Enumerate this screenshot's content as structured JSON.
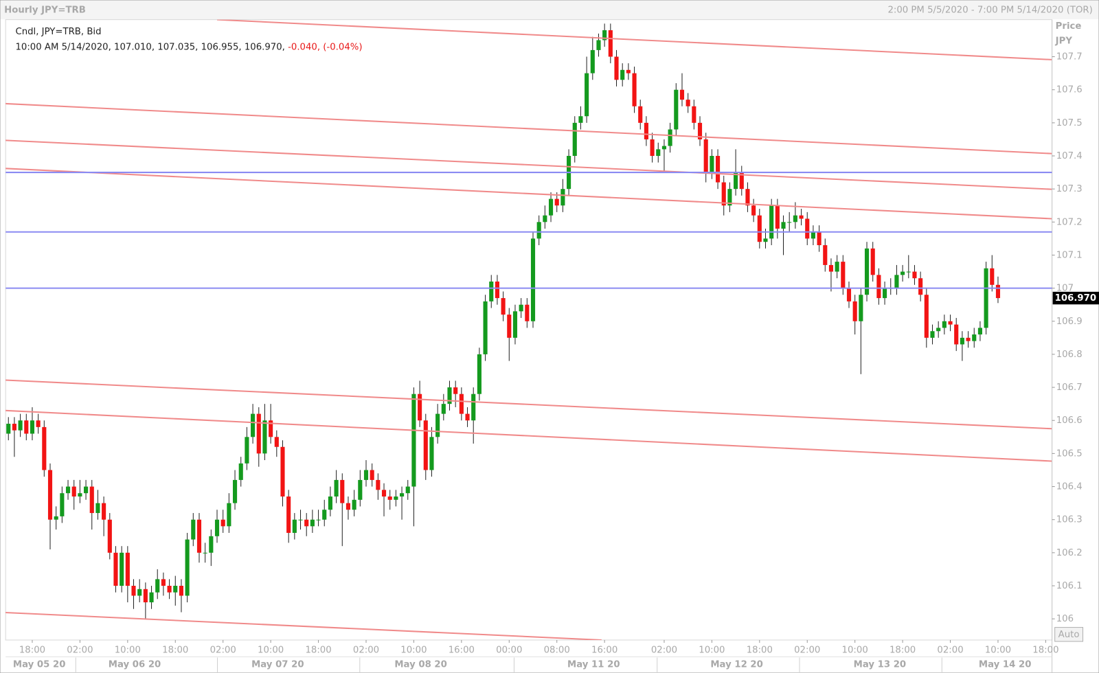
{
  "chart_data": {
    "type": "candlestick",
    "title": "Hourly JPY=TRB",
    "range_label": "2:00 PM 5/5/2020 - 7:00 PM 5/14/2020 (TOR)",
    "legend": {
      "line1": "Cndl, JPY=TRB, Bid",
      "line2": "10:00 AM 5/14/2020, 107.010, 107.035, 106.955, 106.970,",
      "change": "-0.040, (-0.04%)"
    },
    "y_axis_label": "Price",
    "y_axis_unit": "JPY",
    "auto_button": "Auto",
    "up_color": "#149a1e",
    "down_color": "#f21414",
    "trendline_color": "#f08a8a",
    "hline_color": "#8a8af2",
    "ylim": [
      105.936,
      107.812
    ],
    "yticks": [
      106,
      106.1,
      106.2,
      106.3,
      106.4,
      106.5,
      106.6,
      106.7,
      106.8,
      106.9,
      107,
      107.1,
      107.2,
      107.3,
      107.4,
      107.5,
      107.6,
      107.7
    ],
    "last_price": {
      "value": 106.97,
      "label": "106.970"
    },
    "categories": [
      null,
      null,
      null,
      null,
      "18:00",
      null,
      null,
      null,
      null,
      null,
      null,
      null,
      "02:00",
      null,
      null,
      null,
      null,
      null,
      null,
      null,
      "10:00",
      null,
      null,
      null,
      null,
      null,
      null,
      null,
      "18:00",
      null,
      null,
      null,
      null,
      null,
      null,
      null,
      "02:00",
      null,
      null,
      null,
      null,
      null,
      null,
      null,
      "10:00",
      null,
      null,
      null,
      null,
      null,
      null,
      null,
      "18:00",
      null,
      null,
      null,
      null,
      null,
      null,
      null,
      "02:00",
      null,
      null,
      null,
      null,
      null,
      null,
      null,
      "10:00",
      null,
      null,
      null,
      null,
      null,
      null,
      null,
      "16:00",
      null,
      null,
      null,
      null,
      null,
      null,
      null,
      "00:00",
      null,
      null,
      null,
      null,
      null,
      null,
      null,
      "08:00",
      null,
      null,
      null,
      null,
      null,
      null,
      null,
      "16:00",
      null,
      null,
      null,
      null,
      null,
      null,
      null,
      null,
      null,
      "02:00",
      null,
      null,
      null,
      null,
      null,
      null,
      null,
      "10:00",
      null,
      null,
      null,
      null,
      null,
      null,
      null,
      "18:00",
      null,
      null,
      null,
      null,
      null,
      null,
      null,
      "02:00",
      null,
      null,
      null,
      null,
      null,
      null,
      null,
      "10:00",
      null,
      null,
      null,
      null,
      null,
      null,
      null,
      "18:00",
      null,
      null,
      null,
      null,
      null,
      null,
      null,
      "02:00",
      null,
      null,
      null,
      null,
      null,
      null,
      null,
      "10:00",
      null,
      null,
      null,
      null,
      null,
      null,
      null,
      "18:00",
      null
    ],
    "dates": [
      null,
      null,
      null,
      null,
      "May 05 20",
      null,
      null,
      null,
      null,
      null,
      null,
      null,
      null,
      null,
      null,
      null,
      null,
      null,
      null,
      null,
      "May 06 20",
      null,
      null,
      null,
      null,
      null,
      null,
      null,
      null,
      null,
      null,
      null,
      null,
      null,
      null,
      null,
      null,
      null,
      null,
      null,
      null,
      null,
      null,
      null,
      "May 07 20",
      null,
      null,
      null,
      null,
      null,
      null,
      null,
      null,
      null,
      null,
      null,
      null,
      null,
      null,
      null,
      null,
      null,
      null,
      null,
      null,
      null,
      null,
      null,
      "May 08 20",
      null,
      null,
      null,
      null,
      null,
      null,
      null,
      null,
      null,
      null,
      null,
      null,
      null,
      null,
      null,
      null,
      null,
      null,
      null,
      null,
      null,
      null,
      null,
      null,
      null,
      null,
      null,
      null,
      "May 11 20",
      null,
      null,
      null,
      null,
      null,
      null,
      null,
      null,
      null,
      null,
      null,
      null,
      null,
      null,
      null,
      null,
      null,
      null,
      null,
      null,
      null,
      null,
      null,
      "May 12 20",
      null,
      null,
      null,
      null,
      null,
      null,
      null,
      null,
      null,
      null,
      null,
      null,
      null,
      null,
      null,
      null,
      null,
      null,
      null,
      null,
      null,
      null,
      null,
      "May 13 20",
      null,
      null,
      null,
      null,
      null,
      null,
      null,
      null,
      null,
      null,
      null,
      null,
      null,
      null,
      null,
      null,
      null,
      null,
      null,
      null,
      "May 14 20",
      null,
      null,
      null,
      null,
      null,
      null,
      null,
      null,
      null
    ],
    "ohlc": [
      [
        106.56,
        106.61,
        106.54,
        106.59
      ],
      [
        106.59,
        106.61,
        106.49,
        106.57
      ],
      [
        106.57,
        106.62,
        106.55,
        106.6
      ],
      [
        106.6,
        106.62,
        106.54,
        106.56
      ],
      [
        106.56,
        106.64,
        106.54,
        106.6
      ],
      [
        106.6,
        106.62,
        106.56,
        106.58
      ],
      [
        106.58,
        106.6,
        106.43,
        106.45
      ],
      [
        106.45,
        106.47,
        106.21,
        106.3
      ],
      [
        106.3,
        106.34,
        106.27,
        106.31
      ],
      [
        106.31,
        106.4,
        106.29,
        106.38
      ],
      [
        106.38,
        106.42,
        106.36,
        106.4
      ],
      [
        106.4,
        106.42,
        106.33,
        106.37
      ],
      [
        106.37,
        106.42,
        106.35,
        106.38
      ],
      [
        106.38,
        106.42,
        106.36,
        106.4
      ],
      [
        106.4,
        106.42,
        106.27,
        106.32
      ],
      [
        106.32,
        106.39,
        106.3,
        106.35
      ],
      [
        106.35,
        106.37,
        106.25,
        106.3
      ],
      [
        106.3,
        106.32,
        106.18,
        106.2
      ],
      [
        106.2,
        106.22,
        106.08,
        106.1
      ],
      [
        106.1,
        106.22,
        106.08,
        106.2
      ],
      [
        106.2,
        106.22,
        106.05,
        106.1
      ],
      [
        106.1,
        106.12,
        106.03,
        106.07
      ],
      [
        106.07,
        106.12,
        106.05,
        106.09
      ],
      [
        106.09,
        106.11,
        106.0,
        106.05
      ],
      [
        106.05,
        106.1,
        106.03,
        106.08
      ],
      [
        106.08,
        106.15,
        106.06,
        106.12
      ],
      [
        106.12,
        106.14,
        106.07,
        106.1
      ],
      [
        106.1,
        106.12,
        106.06,
        106.08
      ],
      [
        106.08,
        106.13,
        106.04,
        106.1
      ],
      [
        106.1,
        106.12,
        106.02,
        106.07
      ],
      [
        106.07,
        106.26,
        106.05,
        106.24
      ],
      [
        106.24,
        106.32,
        106.22,
        106.3
      ],
      [
        106.3,
        106.32,
        106.17,
        106.2
      ],
      [
        106.2,
        106.23,
        106.17,
        106.2
      ],
      [
        106.2,
        106.27,
        106.16,
        106.25
      ],
      [
        106.25,
        106.33,
        106.23,
        106.3
      ],
      [
        106.3,
        106.33,
        106.26,
        106.28
      ],
      [
        106.28,
        106.38,
        106.26,
        106.35
      ],
      [
        106.35,
        106.45,
        106.33,
        106.42
      ],
      [
        106.42,
        106.49,
        106.4,
        106.47
      ],
      [
        106.47,
        106.58,
        106.45,
        106.55
      ],
      [
        106.55,
        106.65,
        106.53,
        106.62
      ],
      [
        106.62,
        106.64,
        106.46,
        106.5
      ],
      [
        106.5,
        106.65,
        106.48,
        106.6
      ],
      [
        106.6,
        106.65,
        106.53,
        106.55
      ],
      [
        106.55,
        106.57,
        106.49,
        106.52
      ],
      [
        106.52,
        106.54,
        106.34,
        106.37
      ],
      [
        106.37,
        106.39,
        106.23,
        106.26
      ],
      [
        106.26,
        106.32,
        106.24,
        106.3
      ],
      [
        106.3,
        106.33,
        106.27,
        106.3
      ],
      [
        106.3,
        106.32,
        106.25,
        106.28
      ],
      [
        106.28,
        106.33,
        106.26,
        106.3
      ],
      [
        106.3,
        106.33,
        106.28,
        106.3
      ],
      [
        106.3,
        106.36,
        106.28,
        106.33
      ],
      [
        106.33,
        106.4,
        106.31,
        106.37
      ],
      [
        106.37,
        106.45,
        106.35,
        106.42
      ],
      [
        106.42,
        106.44,
        106.22,
        106.35
      ],
      [
        106.35,
        106.37,
        106.3,
        106.33
      ],
      [
        106.33,
        106.39,
        106.31,
        106.36
      ],
      [
        106.36,
        106.45,
        106.34,
        106.42
      ],
      [
        106.42,
        106.48,
        106.4,
        106.45
      ],
      [
        106.45,
        106.47,
        106.4,
        106.42
      ],
      [
        106.42,
        106.44,
        106.36,
        106.39
      ],
      [
        106.39,
        106.41,
        106.31,
        106.37
      ],
      [
        106.37,
        106.39,
        106.33,
        106.36
      ],
      [
        106.36,
        106.39,
        106.34,
        106.37
      ],
      [
        106.37,
        106.4,
        106.3,
        106.38
      ],
      [
        106.38,
        106.42,
        106.36,
        106.4
      ],
      [
        106.4,
        106.7,
        106.28,
        106.68
      ],
      [
        106.68,
        106.72,
        106.58,
        106.6
      ],
      [
        106.6,
        106.62,
        106.42,
        106.45
      ],
      [
        106.45,
        106.58,
        106.43,
        106.55
      ],
      [
        106.55,
        106.65,
        106.53,
        106.62
      ],
      [
        106.62,
        106.68,
        106.6,
        106.65
      ],
      [
        106.65,
        106.72,
        106.63,
        106.7
      ],
      [
        106.7,
        106.72,
        106.64,
        106.68
      ],
      [
        106.68,
        106.7,
        106.6,
        106.62
      ],
      [
        106.62,
        106.64,
        106.58,
        106.6
      ],
      [
        106.6,
        106.7,
        106.53,
        106.68
      ],
      [
        106.68,
        106.82,
        106.66,
        106.8
      ],
      [
        106.8,
        106.98,
        106.78,
        106.96
      ],
      [
        106.96,
        107.04,
        106.94,
        107.02
      ],
      [
        107.02,
        107.04,
        106.95,
        106.97
      ],
      [
        106.97,
        106.99,
        106.9,
        106.92
      ],
      [
        106.92,
        106.94,
        106.78,
        106.85
      ],
      [
        106.85,
        106.95,
        106.83,
        106.93
      ],
      [
        106.93,
        106.97,
        106.91,
        106.95
      ],
      [
        106.95,
        106.97,
        106.88,
        106.9
      ],
      [
        106.9,
        107.17,
        106.88,
        107.15
      ],
      [
        107.15,
        107.22,
        107.13,
        107.2
      ],
      [
        107.2,
        107.25,
        107.18,
        107.22
      ],
      [
        107.22,
        107.29,
        107.2,
        107.27
      ],
      [
        107.27,
        107.29,
        107.23,
        107.25
      ],
      [
        107.25,
        107.33,
        107.23,
        107.3
      ],
      [
        107.3,
        107.42,
        107.28,
        107.4
      ],
      [
        107.4,
        107.52,
        107.38,
        107.5
      ],
      [
        107.5,
        107.55,
        107.48,
        107.52
      ],
      [
        107.52,
        107.7,
        107.5,
        107.65
      ],
      [
        107.65,
        107.76,
        107.63,
        107.72
      ],
      [
        107.72,
        107.77,
        107.7,
        107.75
      ],
      [
        107.75,
        107.8,
        107.73,
        107.78
      ],
      [
        107.78,
        107.8,
        107.68,
        107.7
      ],
      [
        107.7,
        107.72,
        107.61,
        107.63
      ],
      [
        107.63,
        107.68,
        107.61,
        107.66
      ],
      [
        107.66,
        107.68,
        107.63,
        107.65
      ],
      [
        107.65,
        107.67,
        107.53,
        107.55
      ],
      [
        107.55,
        107.57,
        107.48,
        107.5
      ],
      [
        107.5,
        107.52,
        107.43,
        107.45
      ],
      [
        107.45,
        107.47,
        107.38,
        107.4
      ],
      [
        107.4,
        107.44,
        107.38,
        107.42
      ],
      [
        107.42,
        107.45,
        107.35,
        107.43
      ],
      [
        107.43,
        107.5,
        107.41,
        107.48
      ],
      [
        107.48,
        107.62,
        107.46,
        107.6
      ],
      [
        107.6,
        107.65,
        107.55,
        107.57
      ],
      [
        107.57,
        107.59,
        107.53,
        107.55
      ],
      [
        107.55,
        107.57,
        107.48,
        107.5
      ],
      [
        107.5,
        107.52,
        107.43,
        107.45
      ],
      [
        107.45,
        107.47,
        107.32,
        107.35
      ],
      [
        107.35,
        107.42,
        107.33,
        107.4
      ],
      [
        107.4,
        107.42,
        107.3,
        107.32
      ],
      [
        107.32,
        107.34,
        107.22,
        107.25
      ],
      [
        107.25,
        107.32,
        107.23,
        107.3
      ],
      [
        107.3,
        107.42,
        107.28,
        107.35
      ],
      [
        107.35,
        107.37,
        107.28,
        107.3
      ],
      [
        107.3,
        107.32,
        107.23,
        107.25
      ],
      [
        107.25,
        107.27,
        107.2,
        107.22
      ],
      [
        107.22,
        107.24,
        107.12,
        107.14
      ],
      [
        107.14,
        107.18,
        107.12,
        107.15
      ],
      [
        107.15,
        107.27,
        107.13,
        107.25
      ],
      [
        107.25,
        107.27,
        107.15,
        107.18
      ],
      [
        107.18,
        107.22,
        107.1,
        107.2
      ],
      [
        107.2,
        107.23,
        107.17,
        107.2
      ],
      [
        107.2,
        107.26,
        107.18,
        107.22
      ],
      [
        107.22,
        107.24,
        107.19,
        107.21
      ],
      [
        107.21,
        107.23,
        107.13,
        107.15
      ],
      [
        107.15,
        107.19,
        107.13,
        107.17
      ],
      [
        107.17,
        107.19,
        107.11,
        107.13
      ],
      [
        107.13,
        107.15,
        107.05,
        107.07
      ],
      [
        107.07,
        107.09,
        106.99,
        107.05
      ],
      [
        107.05,
        107.1,
        107.03,
        107.08
      ],
      [
        107.08,
        107.1,
        106.98,
        107.0
      ],
      [
        107.0,
        107.02,
        106.94,
        106.96
      ],
      [
        106.96,
        106.98,
        106.86,
        106.9
      ],
      [
        106.9,
        107.0,
        106.74,
        106.98
      ],
      [
        106.98,
        107.14,
        106.96,
        107.12
      ],
      [
        107.12,
        107.14,
        107.02,
        107.04
      ],
      [
        107.04,
        107.06,
        106.95,
        106.97
      ],
      [
        106.97,
        107.02,
        106.95,
        107.0
      ],
      [
        107.0,
        107.03,
        106.98,
        107.0
      ],
      [
        107.0,
        107.07,
        106.98,
        107.04
      ],
      [
        107.04,
        107.07,
        107.02,
        107.05
      ],
      [
        107.05,
        107.1,
        107.03,
        107.05
      ],
      [
        107.05,
        107.07,
        107.01,
        107.03
      ],
      [
        107.03,
        107.05,
        106.96,
        106.98
      ],
      [
        106.98,
        107.0,
        106.82,
        106.85
      ],
      [
        106.85,
        106.89,
        106.83,
        106.87
      ],
      [
        106.87,
        106.9,
        106.85,
        106.88
      ],
      [
        106.88,
        106.92,
        106.86,
        106.9
      ],
      [
        106.9,
        106.92,
        106.87,
        106.89
      ],
      [
        106.89,
        106.91,
        106.81,
        106.83
      ],
      [
        106.83,
        106.87,
        106.78,
        106.85
      ],
      [
        106.85,
        106.87,
        106.82,
        106.84
      ],
      [
        106.84,
        106.88,
        106.82,
        106.86
      ],
      [
        106.86,
        106.9,
        106.84,
        106.88
      ],
      [
        106.88,
        107.08,
        106.86,
        107.06
      ],
      [
        107.06,
        107.1,
        106.99,
        107.01
      ],
      [
        107.01,
        107.035,
        106.955,
        106.97
      ],
      null,
      null,
      null,
      null,
      null,
      null,
      null,
      null,
      null
    ],
    "trendlines": [
      {
        "start": [
          35,
          107.812
        ],
        "end": [
          175,
          107.691
        ]
      },
      {
        "start": [
          -0.5,
          107.558
        ],
        "end": [
          175,
          107.407
        ]
      },
      {
        "start": [
          -0.5,
          107.447
        ],
        "end": [
          175,
          107.299
        ]
      },
      {
        "start": [
          -0.5,
          107.362
        ],
        "end": [
          175,
          107.21
        ]
      },
      {
        "start": [
          -0.5,
          106.722
        ],
        "end": [
          175,
          106.575
        ]
      },
      {
        "start": [
          -0.5,
          106.63
        ],
        "end": [
          175,
          106.477
        ]
      },
      {
        "start": [
          -0.5,
          106.019
        ],
        "end": [
          99.5,
          105.936
        ]
      }
    ],
    "hlines": [
      107.35,
      107.17,
      107
    ]
  }
}
